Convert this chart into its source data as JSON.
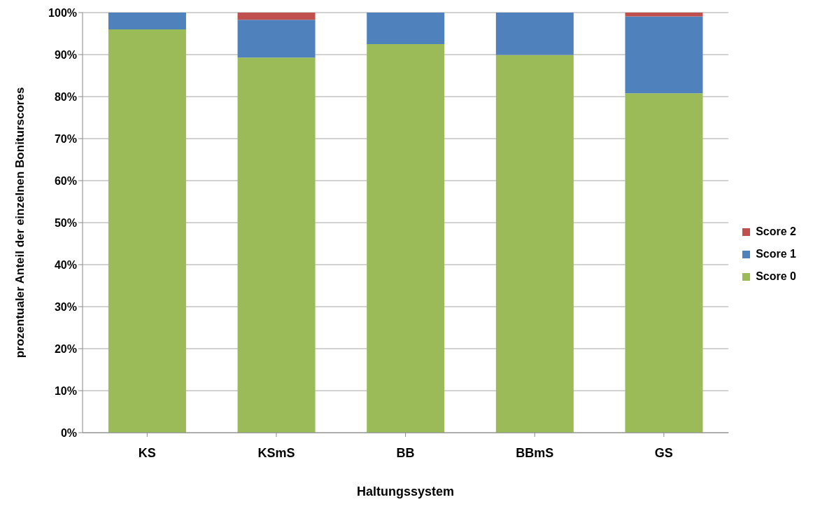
{
  "chart_data": {
    "type": "bar",
    "stacked": true,
    "xlabel": "Haltungssystem",
    "ylabel": "prozentualer Anteil der einzelnen Boniturscores",
    "categories": [
      "KS",
      "KSmS",
      "BB",
      "BBmS",
      "GS"
    ],
    "series": [
      {
        "name": "Score 0",
        "color": "#9bbb59",
        "values": [
          96,
          89.3,
          92.5,
          89.9,
          80.8
        ]
      },
      {
        "name": "Score 1",
        "color": "#4f81bd",
        "values": [
          4,
          9,
          7.5,
          10.1,
          18.3
        ]
      },
      {
        "name": "Score 2",
        "color": "#c0504d",
        "values": [
          0,
          1.7,
          0,
          0,
          0.9
        ]
      }
    ],
    "ylim": [
      0,
      100
    ],
    "yticks": [
      {
        "value": 0,
        "label": "0%"
      },
      {
        "value": 10,
        "label": "10%"
      },
      {
        "value": 20,
        "label": "20%"
      },
      {
        "value": 30,
        "label": "30%"
      },
      {
        "value": 40,
        "label": "40%"
      },
      {
        "value": 50,
        "label": "50%"
      },
      {
        "value": 60,
        "label": "60%"
      },
      {
        "value": 70,
        "label": "70%"
      },
      {
        "value": 80,
        "label": "80%"
      },
      {
        "value": 90,
        "label": "90%"
      },
      {
        "value": 100,
        "label": "100%"
      }
    ],
    "grid": "y",
    "legend": "right"
  }
}
